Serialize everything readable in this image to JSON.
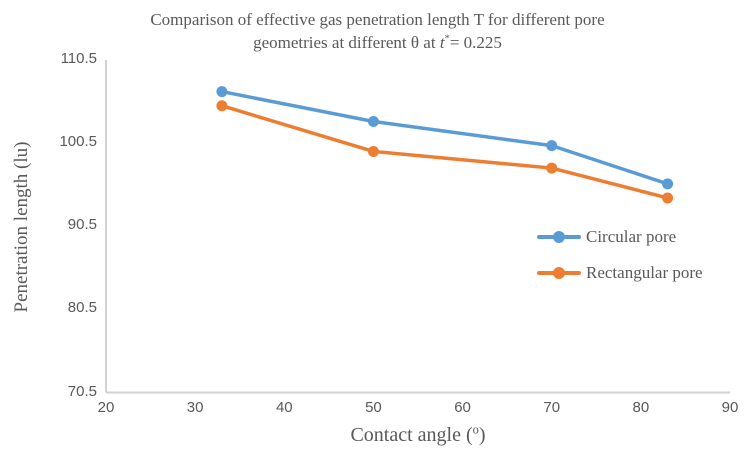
{
  "title": {
    "line1": "Comparison of effective gas penetration length T for different pore",
    "line2_pre": "geometries at different θ at ",
    "line2_t": "t",
    "line2_sup": "*",
    "line2_post": "= 0.225"
  },
  "axes": {
    "y_label": "Penetration length (lu)",
    "x_label_pre": "Contact angle (",
    "x_label_sup": "o",
    "x_label_post": ")"
  },
  "legend": [
    {
      "label": "Circular pore"
    },
    {
      "label": "Rectangular pore"
    }
  ],
  "chart_data": {
    "type": "line",
    "title": "Comparison of effective gas penetration length T for different pore geometries at different θ at t*= 0.225",
    "xlabel": "Contact angle (°)",
    "ylabel": "Penetration length (lu)",
    "x": [
      33,
      50,
      70,
      83
    ],
    "series": [
      {
        "name": "Circular pore",
        "color": "#5B9BD5",
        "values": [
          106.7,
          103.1,
          100.2,
          95.6
        ]
      },
      {
        "name": "Rectangular pore",
        "color": "#ED7D31",
        "values": [
          105.0,
          99.5,
          97.5,
          93.9
        ]
      }
    ],
    "xlim": [
      20,
      90
    ],
    "ylim": [
      70.5,
      110.5
    ],
    "xticks": [
      20,
      30,
      40,
      50,
      60,
      70,
      80,
      90
    ],
    "yticks": [
      70.5,
      80.5,
      90.5,
      100.5,
      110.5
    ],
    "grid": false,
    "legend_position": "inside-right",
    "axis_color": "#D2D2D2",
    "text_color": "#595959",
    "marker": "circle"
  }
}
